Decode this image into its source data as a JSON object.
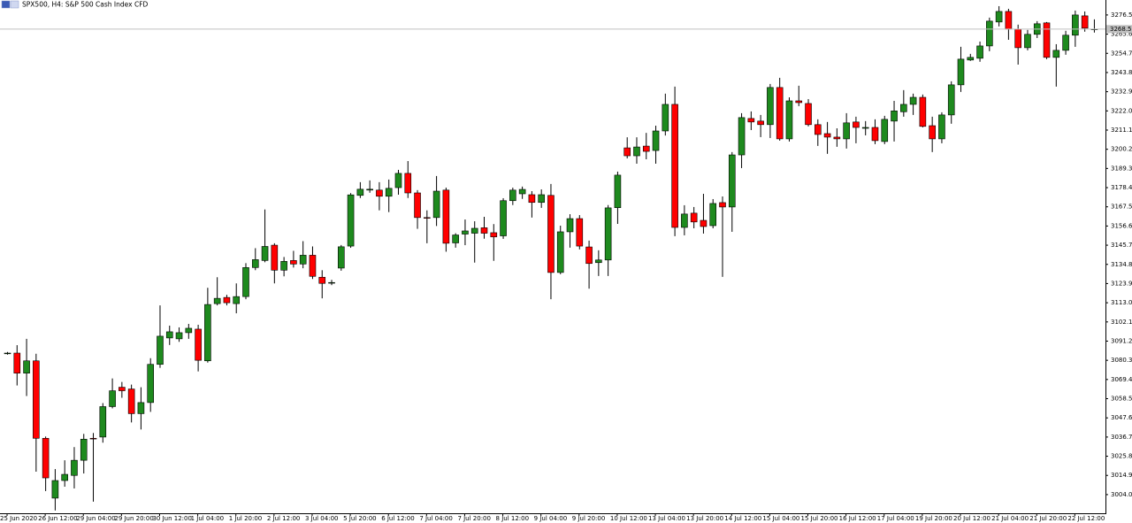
{
  "chart_data": {
    "type": "candlestick",
    "title": "SPX500, H4:  S&P 500 Cash Index CFD",
    "up_color": "#1e8a1e",
    "down_color": "#ff0000",
    "categories": [
      "25 Jun 2020",
      null,
      null,
      null,
      "26 Jun 12:00",
      null,
      null,
      null,
      "29 Jun 04:00",
      null,
      null,
      null,
      "29 Jun 20:00",
      null,
      null,
      null,
      "30 Jun 12:00",
      null,
      null,
      null,
      "1 Jul 04:00",
      null,
      null,
      null,
      "1 Jul 20:00",
      null,
      null,
      null,
      "2 Jul 12:00",
      null,
      null,
      null,
      "3 Jul 04:00",
      null,
      null,
      null,
      "5 Jul 20:00",
      null,
      null,
      null,
      "6 Jul 12:00",
      null,
      null,
      null,
      "7 Jul 04:00",
      null,
      null,
      null,
      "7 Jul 20:00",
      null,
      null,
      null,
      "8 Jul 12:00",
      null,
      null,
      null,
      "9 Jul 04:00",
      null,
      null,
      null,
      "9 Jul 20:00",
      null,
      null,
      null,
      "10 Jul 12:00",
      null,
      null,
      null,
      "13 Jul 04:00",
      null,
      null,
      null,
      "13 Jul 20:00",
      null,
      null,
      null,
      "14 Jul 12:00",
      null,
      null,
      null,
      "15 Jul 04:00",
      null,
      null,
      null,
      "15 Jul 20:00",
      null,
      null,
      null,
      "16 Jul 12:00",
      null,
      null,
      null,
      "17 Jul 04:00",
      null,
      null,
      null,
      "19 Jul 20:00",
      null,
      null,
      null,
      "20 Jul 12:00",
      null,
      null,
      null,
      "21 Jul 04:00",
      null,
      null,
      null,
      "21 Jul 20:00",
      null,
      null,
      null,
      "22 Jul 12:00",
      null,
      null
    ],
    "open": [
      3084.4,
      3084.4,
      3073,
      3080,
      3036,
      3002,
      3012,
      3014.9,
      3023.5,
      3036,
      3036.7,
      3054,
      3065,
      3064,
      3050,
      3056.3,
      3078,
      3093,
      3092.5,
      3096,
      3098,
      3080,
      3112.5,
      3116,
      3112.5,
      3116.5,
      3133,
      3137,
      3145.7,
      3131.5,
      3137,
      3135,
      3140,
      3127.5,
      3124.5,
      3132.7,
      3145.2,
      3174,
      3177,
      3177,
      3173.5,
      3178.4,
      3186.5,
      3175.4,
      3161.4,
      3161.4,
      3177,
      3147,
      3152,
      3152.5,
      3155.6,
      3152.8,
      3151,
      3171,
      3174.9,
      3174.4,
      3170,
      3174,
      3130.2,
      3153.3,
      3160.8,
      3144.7,
      3135.8,
      3137.3,
      3167,
      3201,
      3196.5,
      3202,
      3199.5,
      3210.6,
      3225.7,
      3155.8,
      3163.9,
      3159.8,
      3156.8,
      3169.9,
      3167.4,
      3197,
      3217.7,
      3216.2,
      3214.2,
      3235.3,
      3206.1,
      3227.7,
      3226.2,
      3214.2,
      3209.1,
      3207.1,
      3206.1,
      3215.7,
      3212.1,
      3212.6,
      3204.6,
      3216.2,
      3221.5,
      3225.7,
      3229.7,
      3213.6,
      3206.1,
      3219.7,
      3236.8,
      3250.9,
      3251.9,
      3258.9,
      3272.5,
      3278.5,
      3268.5,
      3257.9,
      3265.5,
      3272,
      3252.4,
      3256.4,
      3265,
      3276,
      3268.5
    ],
    "high": [
      3085,
      3088.9,
      3092.5,
      3084,
      3037,
      3018.5,
      3023.5,
      3031,
      3038.5,
      3039,
      3056,
      3070,
      3068,
      3066.5,
      3065,
      3081.5,
      3111.5,
      3100,
      3099,
      3101,
      3100.5,
      3121.5,
      3127.5,
      3117.5,
      3124,
      3135.5,
      3144,
      3166,
      3146.8,
      3139,
      3142.5,
      3148,
      3145,
      3131.5,
      3126,
      3145.8,
      3175.3,
      3181.5,
      3182.5,
      3181.5,
      3183,
      3188.5,
      3193.5,
      3177,
      3165.5,
      3185,
      3178.4,
      3152.5,
      3160.3,
      3159.3,
      3161.8,
      3157.7,
      3172.4,
      3178.4,
      3179,
      3176.4,
      3177.4,
      3180.5,
      3156.8,
      3163.3,
      3162.8,
      3148.3,
      3142.8,
      3168.5,
      3187.5,
      3207,
      3207,
      3209.5,
      3213.6,
      3231.8,
      3235.8,
      3168.4,
      3167.4,
      3174.9,
      3171.9,
      3173.4,
      3198.6,
      3220.7,
      3221.7,
      3219.7,
      3237.3,
      3240.8,
      3229.7,
      3236.3,
      3228.7,
      3217.2,
      3215.7,
      3212.1,
      3220.7,
      3218.7,
      3216.2,
      3217.2,
      3219.2,
      3227.7,
      3233.8,
      3231.8,
      3231.3,
      3218.7,
      3221.2,
      3238.8,
      3258.4,
      3254.4,
      3261.4,
      3275,
      3281.5,
      3280,
      3271,
      3268,
      3273,
      3272.5,
      3259.9,
      3267.5,
      3279,
      3278.5,
      3274
    ],
    "low": [
      3083.5,
      3066,
      3060,
      3017,
      3006,
      2995,
      3008.5,
      3007.5,
      3016,
      3000,
      3033.5,
      3053,
      3059,
      3045,
      3041,
      3051,
      3076,
      3089,
      3090.8,
      3092.5,
      3074,
      3079,
      3111.5,
      3111.5,
      3107,
      3115,
      3131.5,
      3136,
      3124,
      3128,
      3133,
      3132.6,
      3126.5,
      3115.5,
      3123,
      3131.2,
      3144.2,
      3172.5,
      3175.5,
      3165.5,
      3164.5,
      3174.4,
      3172.5,
      3155,
      3146.8,
      3156.6,
      3142,
      3144.3,
      3145.7,
      3135.8,
      3149.4,
      3136.8,
      3149.3,
      3168.5,
      3172,
      3161.4,
      3166.9,
      3115,
      3129.2,
      3144.3,
      3143.3,
      3121,
      3128.2,
      3128.2,
      3157.8,
      3195,
      3192,
      3194.5,
      3192,
      3208,
      3150.8,
      3151.3,
      3155.3,
      3152.3,
      3155.3,
      3127.7,
      3153.3,
      3189.5,
      3211.1,
      3207.1,
      3206.6,
      3205.1,
      3204.6,
      3224.7,
      3213.2,
      3202.1,
      3197.6,
      3201.6,
      3200.6,
      3203.6,
      3208.1,
      3203.1,
      3203.1,
      3204.6,
      3218.7,
      3219.7,
      3212.6,
      3198.6,
      3203.6,
      3214.7,
      3232.8,
      3250.4,
      3249.9,
      3255.9,
      3270,
      3262.4,
      3248.3,
      3256.4,
      3263.4,
      3251.4,
      3235.8,
      3253.9,
      3258.4,
      3267,
      3266.5
    ],
    "close": [
      3084.4,
      3073,
      3080,
      3036,
      3013.5,
      3012,
      3015.5,
      3023.5,
      3035.5,
      3035.8,
      3054,
      3063,
      3063,
      3050,
      3056.3,
      3078,
      3094,
      3096.5,
      3096,
      3098.5,
      3080.3,
      3112,
      3115.5,
      3113,
      3116.5,
      3133,
      3137.5,
      3145,
      3131.5,
      3136.5,
      3135,
      3140,
      3128,
      3124,
      3124.5,
      3144.8,
      3174.3,
      3177.5,
      3177.5,
      3173.5,
      3178,
      3186.5,
      3175.4,
      3161.4,
      3161.3,
      3176.4,
      3146.8,
      3151.5,
      3153.8,
      3155.3,
      3152.5,
      3150.4,
      3171,
      3177,
      3177.4,
      3170,
      3174.4,
      3130.2,
      3153.3,
      3160.8,
      3145.2,
      3135.3,
      3137.3,
      3166.9,
      3185.5,
      3196.5,
      3201.5,
      3199,
      3210.6,
      3225.7,
      3155.8,
      3163.4,
      3158.9,
      3156.3,
      3169.4,
      3167.4,
      3197,
      3218.2,
      3215.7,
      3214.2,
      3235.3,
      3206.1,
      3227.7,
      3226.7,
      3214.2,
      3208.6,
      3207.1,
      3206.1,
      3215.2,
      3212.6,
      3212.6,
      3205.1,
      3217.2,
      3222,
      3225.7,
      3229.7,
      3213.2,
      3206.1,
      3219.7,
      3236.8,
      3251.4,
      3252.4,
      3258.9,
      3273,
      3278.5,
      3268.5,
      3257.9,
      3265.5,
      3271.5,
      3252.4,
      3256.4,
      3265,
      3276.5,
      3269,
      3268.5
    ],
    "ylim": [
      2993.4,
      3285.0
    ],
    "yticks": [
      {
        "value": 3004.0,
        "label": "3004.0"
      },
      3014.9,
      3025.8,
      3036.7,
      3047.6,
      3058.5,
      3069.4,
      3080.3,
      3091.2,
      3102.1,
      {
        "value": 3113.0,
        "label": "3113.0"
      },
      3123.9,
      3134.8,
      3145.7,
      3156.6,
      3167.5,
      3178.4,
      3189.3,
      3200.2,
      3211.1,
      {
        "value": 3222.0,
        "label": "3222.0"
      },
      3232.9,
      3243.8,
      3254.7,
      3265.6,
      3276.5
    ]
  }
}
